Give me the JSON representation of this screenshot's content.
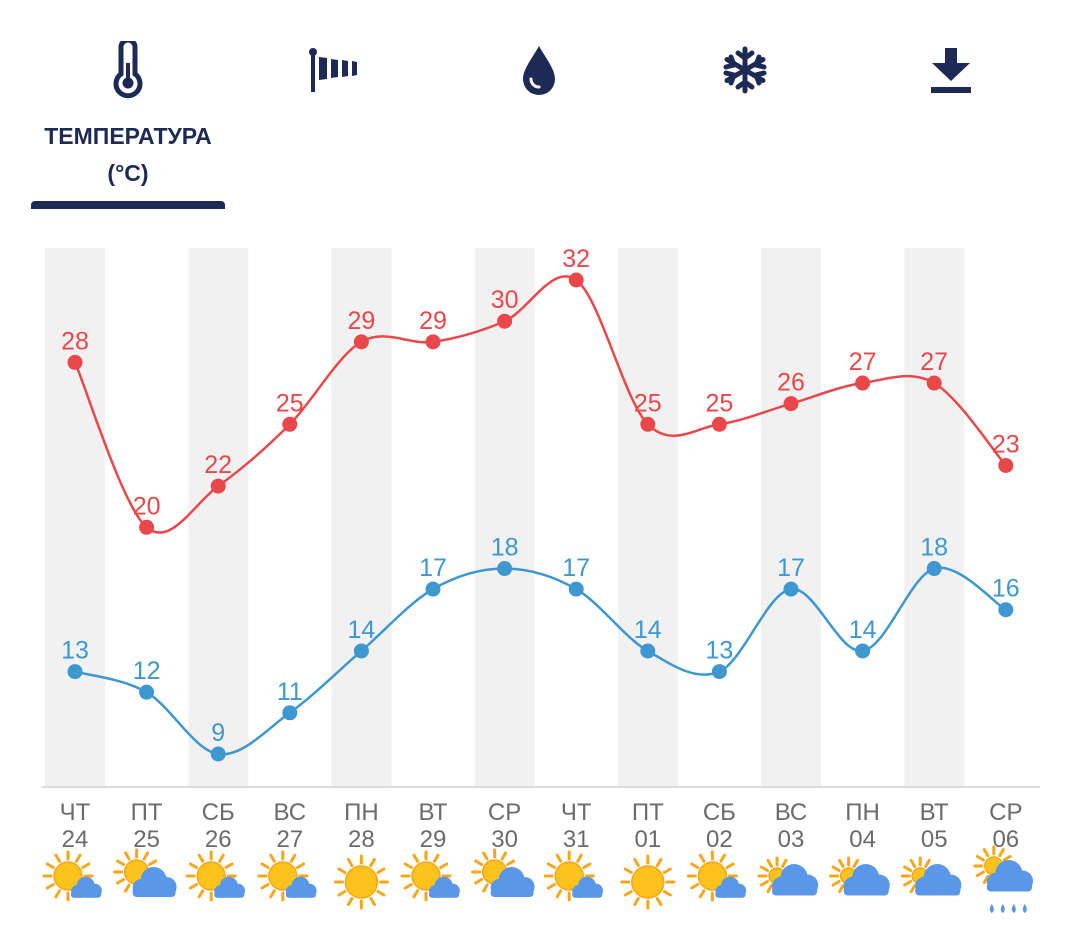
{
  "tabs": [
    {
      "icon": "thermometer-icon",
      "label_line1": "ТЕМПЕРАТУРА",
      "label_line2": "(°C)",
      "active": true
    },
    {
      "icon": "wind-icon",
      "active": false
    },
    {
      "icon": "humidity-drop-icon",
      "active": false
    },
    {
      "icon": "snowflake-icon",
      "active": false
    },
    {
      "icon": "download-icon",
      "active": false
    }
  ],
  "colors": {
    "accent": "#1d2a55",
    "high": "#e8484a",
    "low": "#3e97cf",
    "band": "#f1f1f1",
    "axis_text": "#6b6b6b"
  },
  "chart_data": {
    "type": "line",
    "x": [
      {
        "weekday": "ЧТ",
        "day": "24"
      },
      {
        "weekday": "ПТ",
        "day": "25"
      },
      {
        "weekday": "СБ",
        "day": "26"
      },
      {
        "weekday": "ВС",
        "day": "27"
      },
      {
        "weekday": "ПН",
        "day": "28"
      },
      {
        "weekday": "ВТ",
        "day": "29"
      },
      {
        "weekday": "СР",
        "day": "30"
      },
      {
        "weekday": "ЧТ",
        "day": "31"
      },
      {
        "weekday": "ПТ",
        "day": "01"
      },
      {
        "weekday": "СБ",
        "day": "02"
      },
      {
        "weekday": "ВС",
        "day": "03"
      },
      {
        "weekday": "ПН",
        "day": "04"
      },
      {
        "weekday": "ВТ",
        "day": "05"
      },
      {
        "weekday": "СР",
        "day": "06"
      }
    ],
    "series": [
      {
        "values": [
          28,
          20,
          22,
          25,
          29,
          29,
          30,
          32,
          25,
          25,
          26,
          27,
          27,
          23
        ],
        "color": "#e8484a"
      },
      {
        "values": [
          13,
          12,
          9,
          11,
          14,
          17,
          18,
          17,
          14,
          13,
          17,
          14,
          18,
          16
        ],
        "color": "#3e97cf"
      }
    ],
    "ylim": [
      7,
      33
    ],
    "weather_icons": [
      "sun-cloud",
      "cloud-sun",
      "sun-cloud",
      "sun-cloud",
      "sun",
      "sun-cloud",
      "cloud-sun",
      "sun-cloud",
      "sun",
      "sun-cloud",
      "cloud-sun-light",
      "cloud-sun-light",
      "cloud-sun-light",
      "rain-cloud"
    ],
    "grid": false,
    "legend": "none"
  }
}
